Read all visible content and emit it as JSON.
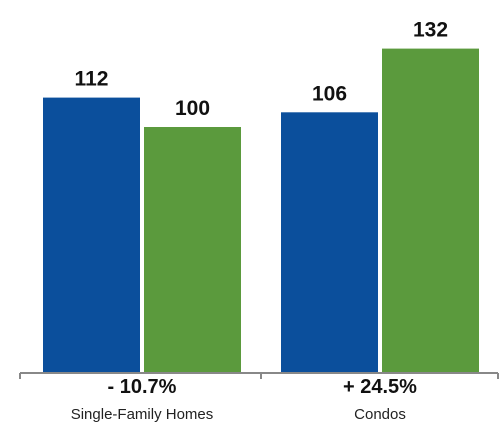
{
  "chart_data": {
    "type": "bar",
    "categories": [
      "Single-Family Homes",
      "Condos"
    ],
    "change_labels": [
      "- 10.7%",
      "+ 24.5%"
    ],
    "series": [
      {
        "values": [
          112,
          106
        ],
        "color": "#0b4f9c"
      },
      {
        "values": [
          100,
          132
        ],
        "color": "#5b9a3d"
      }
    ],
    "ylim": [
      0,
      150
    ],
    "grid": false,
    "legend": "none",
    "axis_color": "#888888"
  }
}
